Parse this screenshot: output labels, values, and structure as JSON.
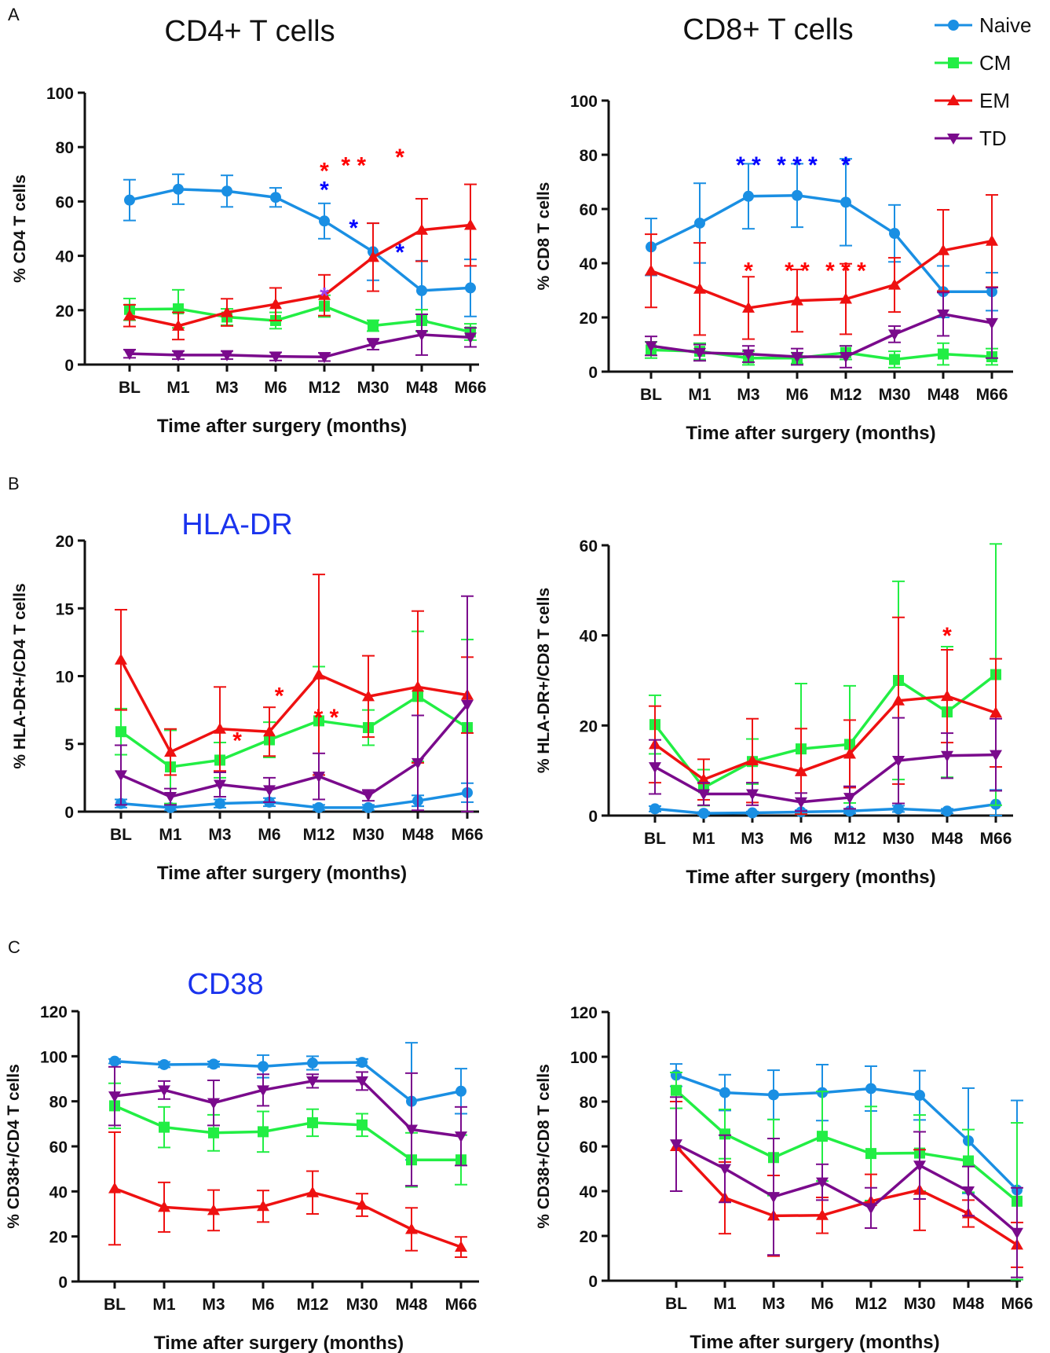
{
  "series_colors": {
    "Naive": "#1a8fe3",
    "CM": "#22ee44",
    "EM": "#ee1111",
    "TD": "#7a0a8c"
  },
  "legend": [
    "Naive",
    "CM",
    "EM",
    "TD"
  ],
  "chart_data": [
    {
      "type": "line",
      "panel": "A",
      "title": "CD4+ T cells",
      "title_color": "#111111",
      "xlabel": "Time after surgery (months)",
      "ylabel": "% CD4 T cells",
      "categories": [
        "BL",
        "M1",
        "M3",
        "M6",
        "M12",
        "M30",
        "M48",
        "M66"
      ],
      "ylim": [
        0,
        100
      ],
      "yticks": [
        0,
        20,
        40,
        60,
        80,
        100
      ],
      "series": [
        {
          "name": "Naive",
          "values": [
            60.5,
            64.5,
            63.8,
            61.5,
            52.8,
            41.5,
            27.2,
            28.2
          ],
          "err": [
            7.5,
            5.5,
            5.8,
            3.5,
            6.5,
            10.5,
            11,
            10.5
          ]
        },
        {
          "name": "CM",
          "values": [
            20.3,
            20.5,
            17.5,
            16.2,
            21.5,
            14.3,
            16.2,
            12.0
          ],
          "err": [
            4,
            7,
            3,
            3,
            4,
            2,
            4,
            3
          ]
        },
        {
          "name": "EM",
          "values": [
            18.0,
            14.2,
            19.2,
            22.2,
            25.5,
            39.5,
            49.5,
            51.3
          ],
          "err": [
            4,
            5,
            5,
            6,
            7.5,
            12.5,
            11.5,
            15
          ]
        },
        {
          "name": "TD",
          "values": [
            4.0,
            3.5,
            3.5,
            3.0,
            2.8,
            7.5,
            11.0,
            10.0
          ],
          "err": [
            1.5,
            1.5,
            1.5,
            1.5,
            1.5,
            2,
            7.5,
            3.5
          ]
        }
      ],
      "annotations": [
        {
          "text": "*",
          "color": "red",
          "x": 4,
          "y": 73
        },
        {
          "text": "*",
          "color": "blue",
          "x": 4,
          "y": 66
        },
        {
          "text": "* *",
          "color": "red",
          "x": 4.6,
          "y": 75
        },
        {
          "text": "*",
          "color": "red",
          "x": 5.55,
          "y": 78
        },
        {
          "text": "*",
          "color": "blue",
          "x": 4.6,
          "y": 52
        },
        {
          "text": "*",
          "color": "blue",
          "x": 5.55,
          "y": 43
        },
        {
          "text": "*",
          "color": "#a040ee",
          "x": 4,
          "y": 27
        }
      ]
    },
    {
      "type": "line",
      "panel": "",
      "title": "CD8+ T cells",
      "title_color": "#111111",
      "xlabel": "Time after surgery (months)",
      "ylabel": "% CD8 T cells",
      "categories": [
        "BL",
        "M1",
        "M3",
        "M6",
        "M12",
        "M30",
        "M48",
        "M66"
      ],
      "ylim": [
        0,
        100
      ],
      "yticks": [
        0,
        20,
        40,
        60,
        80,
        100
      ],
      "series": [
        {
          "name": "Naive",
          "values": [
            46.0,
            54.8,
            64.7,
            65.0,
            62.5,
            51.0,
            29.5,
            29.5
          ],
          "err": [
            10.5,
            14.7,
            12,
            11.7,
            16,
            10.5,
            9.5,
            7
          ]
        },
        {
          "name": "CM",
          "values": [
            8.0,
            7.5,
            5.0,
            5.0,
            7.0,
            4.5,
            6.5,
            5.5
          ],
          "err": [
            3,
            3,
            2.5,
            2,
            2.5,
            3,
            4,
            3
          ]
        },
        {
          "name": "EM",
          "values": [
            37.2,
            30.5,
            23.5,
            26.2,
            26.8,
            32.0,
            44.7,
            48.2
          ],
          "err": [
            13.5,
            17,
            11.5,
            11.5,
            13,
            10,
            15,
            17
          ]
        },
        {
          "name": "TD",
          "values": [
            9.5,
            7.0,
            6.5,
            5.5,
            5.5,
            13.8,
            21.2,
            18.0
          ],
          "err": [
            3.5,
            3,
            3,
            3,
            4,
            3,
            8,
            13
          ]
        }
      ],
      "annotations": [
        {
          "text": "* *",
          "color": "blue",
          "x": 2,
          "y": 78
        },
        {
          "text": "* * *",
          "color": "blue",
          "x": 3,
          "y": 78
        },
        {
          "text": "*",
          "color": "blue",
          "x": 4,
          "y": 78
        },
        {
          "text": "*",
          "color": "red",
          "x": 2,
          "y": 39
        },
        {
          "text": "* *",
          "color": "red",
          "x": 3,
          "y": 39
        },
        {
          "text": "* * *",
          "color": "red",
          "x": 4,
          "y": 39
        }
      ]
    },
    {
      "type": "line",
      "panel": "B",
      "title": "HLA-DR",
      "title_color": "#1a33ee",
      "xlabel": "Time after surgery (months)",
      "ylabel": "% HLA-DR+/CD4 T cells",
      "categories": [
        "BL",
        "M1",
        "M3",
        "M6",
        "M12",
        "M30",
        "M48",
        "M66"
      ],
      "ylim": [
        0,
        20
      ],
      "yticks": [
        0,
        5,
        10,
        15,
        20
      ],
      "series": [
        {
          "name": "Naive",
          "values": [
            0.6,
            0.3,
            0.6,
            0.7,
            0.3,
            0.3,
            0.8,
            1.4
          ],
          "err": [
            0.3,
            0.2,
            0.3,
            0.3,
            0.2,
            0.2,
            0.4,
            0.7
          ]
        },
        {
          "name": "CM",
          "values": [
            5.9,
            3.3,
            3.8,
            5.3,
            6.7,
            6.2,
            8.5,
            6.2
          ],
          "err": [
            1.7,
            2.7,
            1.3,
            1.3,
            4,
            1.3,
            4.8,
            6.5
          ]
        },
        {
          "name": "EM",
          "values": [
            11.2,
            4.4,
            6.1,
            5.9,
            10.1,
            8.5,
            9.2,
            8.6
          ],
          "err": [
            3.7,
            1.7,
            3.1,
            1.8,
            7.4,
            3,
            5.6,
            2.8
          ]
        },
        {
          "name": "TD",
          "values": [
            2.7,
            1.1,
            2.0,
            1.6,
            2.6,
            1.2,
            3.6,
            7.9
          ],
          "err": [
            2.2,
            0.6,
            0.9,
            0.9,
            1.7,
            0.4,
            3.5,
            8
          ]
        }
      ],
      "annotations": [
        {
          "text": "*",
          "color": "red",
          "x": 2.35,
          "y": 5.6
        },
        {
          "text": "*",
          "color": "red",
          "x": 3.2,
          "y": 8.9
        },
        {
          "text": "* *",
          "color": "red",
          "x": 4.15,
          "y": 7.3
        }
      ]
    },
    {
      "type": "line",
      "panel": "",
      "title": "",
      "title_color": "#111111",
      "xlabel": "Time after surgery (months)",
      "ylabel": "% HLA-DR+/CD8 T cells",
      "categories": [
        "BL",
        "M1",
        "M3",
        "M6",
        "M12",
        "M30",
        "M48",
        "M66"
      ],
      "ylim": [
        0,
        60
      ],
      "yticks": [
        0,
        20,
        40,
        60
      ],
      "series": [
        {
          "name": "Naive",
          "values": [
            1.5,
            0.5,
            0.6,
            0.8,
            1.0,
            1.5,
            1.0,
            2.5
          ],
          "err": [
            0.6,
            0.3,
            0.3,
            0.4,
            0.5,
            0.7,
            0.5,
            3.2
          ]
        },
        {
          "name": "CM",
          "values": [
            20.2,
            6.2,
            12.0,
            14.8,
            15.8,
            30.0,
            23.0,
            31.3
          ],
          "err": [
            6.5,
            4,
            5,
            14.5,
            13,
            22,
            14.5,
            29
          ]
        },
        {
          "name": "EM",
          "values": [
            15.8,
            8.0,
            12.2,
            9.8,
            13.7,
            25.5,
            26.5,
            22.8
          ],
          "err": [
            8.5,
            4.5,
            9.3,
            9.5,
            7.5,
            18.5,
            10.3,
            12
          ]
        },
        {
          "name": "TD",
          "values": [
            10.8,
            4.8,
            4.8,
            3.0,
            4.0,
            12.2,
            13.3,
            13.5
          ],
          "err": [
            6,
            2.5,
            2.5,
            2,
            2.5,
            9.5,
            5,
            8
          ]
        }
      ],
      "annotations": [
        {
          "text": "*",
          "color": "red",
          "x": 6,
          "y": 41
        }
      ]
    },
    {
      "type": "line",
      "panel": "C",
      "title": "CD38",
      "title_color": "#1a33ee",
      "xlabel": "Time after surgery (months)",
      "ylabel": "% CD38+/CD4 T cells",
      "categories": [
        "BL",
        "M1",
        "M3",
        "M6",
        "M12",
        "M30",
        "M48",
        "M66"
      ],
      "ylim": [
        0,
        120
      ],
      "yticks": [
        0,
        20,
        40,
        60,
        80,
        100,
        120
      ],
      "series": [
        {
          "name": "Naive",
          "values": [
            97.8,
            96.3,
            96.5,
            95.5,
            97.0,
            97.3,
            80.0,
            84.5
          ],
          "err": [
            1,
            1.2,
            1.2,
            5,
            3,
            1.5,
            26,
            10
          ]
        },
        {
          "name": "CM",
          "values": [
            78.0,
            68.5,
            66.0,
            66.5,
            70.5,
            69.5,
            54.0,
            54.0
          ],
          "err": [
            10,
            9,
            8,
            9,
            6,
            5,
            12,
            11
          ]
        },
        {
          "name": "EM",
          "values": [
            41.3,
            33.0,
            31.6,
            33.4,
            39.5,
            34.0,
            23.2,
            15.3
          ],
          "err": [
            25,
            11,
            9,
            7,
            9.5,
            5,
            9.5,
            4.5
          ]
        },
        {
          "name": "TD",
          "values": [
            82.3,
            85.0,
            79.3,
            85.0,
            89.0,
            89.0,
            67.5,
            64.5
          ],
          "err": [
            13,
            4,
            10,
            7,
            3,
            4,
            25,
            13
          ]
        }
      ],
      "annotations": []
    },
    {
      "type": "line",
      "panel": "",
      "title": "",
      "title_color": "#111111",
      "xlabel": "Time after surgery (months)",
      "ylabel": "% CD38+/CD8 T cells",
      "categories": [
        "BL",
        "M1",
        "M3",
        "M6",
        "M12",
        "M30",
        "M48",
        "M66"
      ],
      "ylim": [
        0,
        120
      ],
      "yticks": [
        0,
        20,
        40,
        60,
        80,
        100,
        120
      ],
      "series": [
        {
          "name": "Naive",
          "values": [
            91.8,
            84.0,
            83.0,
            84.0,
            85.8,
            82.8,
            62.5,
            40.5
          ],
          "err": [
            5,
            8,
            11,
            12.5,
            10,
            11,
            23.5,
            40
          ]
        },
        {
          "name": "CM",
          "values": [
            85.0,
            65.5,
            55.0,
            64.5,
            56.8,
            57.0,
            53.5,
            35.5
          ],
          "err": [
            8,
            11,
            17,
            20,
            21,
            17,
            14,
            35
          ]
        },
        {
          "name": "EM",
          "values": [
            60.0,
            37.0,
            29.0,
            29.2,
            35.5,
            40.5,
            30.0,
            16.0
          ],
          "err": [
            20,
            16,
            18,
            8,
            12,
            18,
            6,
            10
          ]
        },
        {
          "name": "TD",
          "values": [
            61.0,
            50.0,
            37.5,
            44.0,
            32.5,
            51.5,
            40.0,
            21.5
          ],
          "err": [
            21,
            15,
            26,
            8,
            9,
            15,
            11,
            20
          ]
        }
      ],
      "annotations": []
    }
  ]
}
